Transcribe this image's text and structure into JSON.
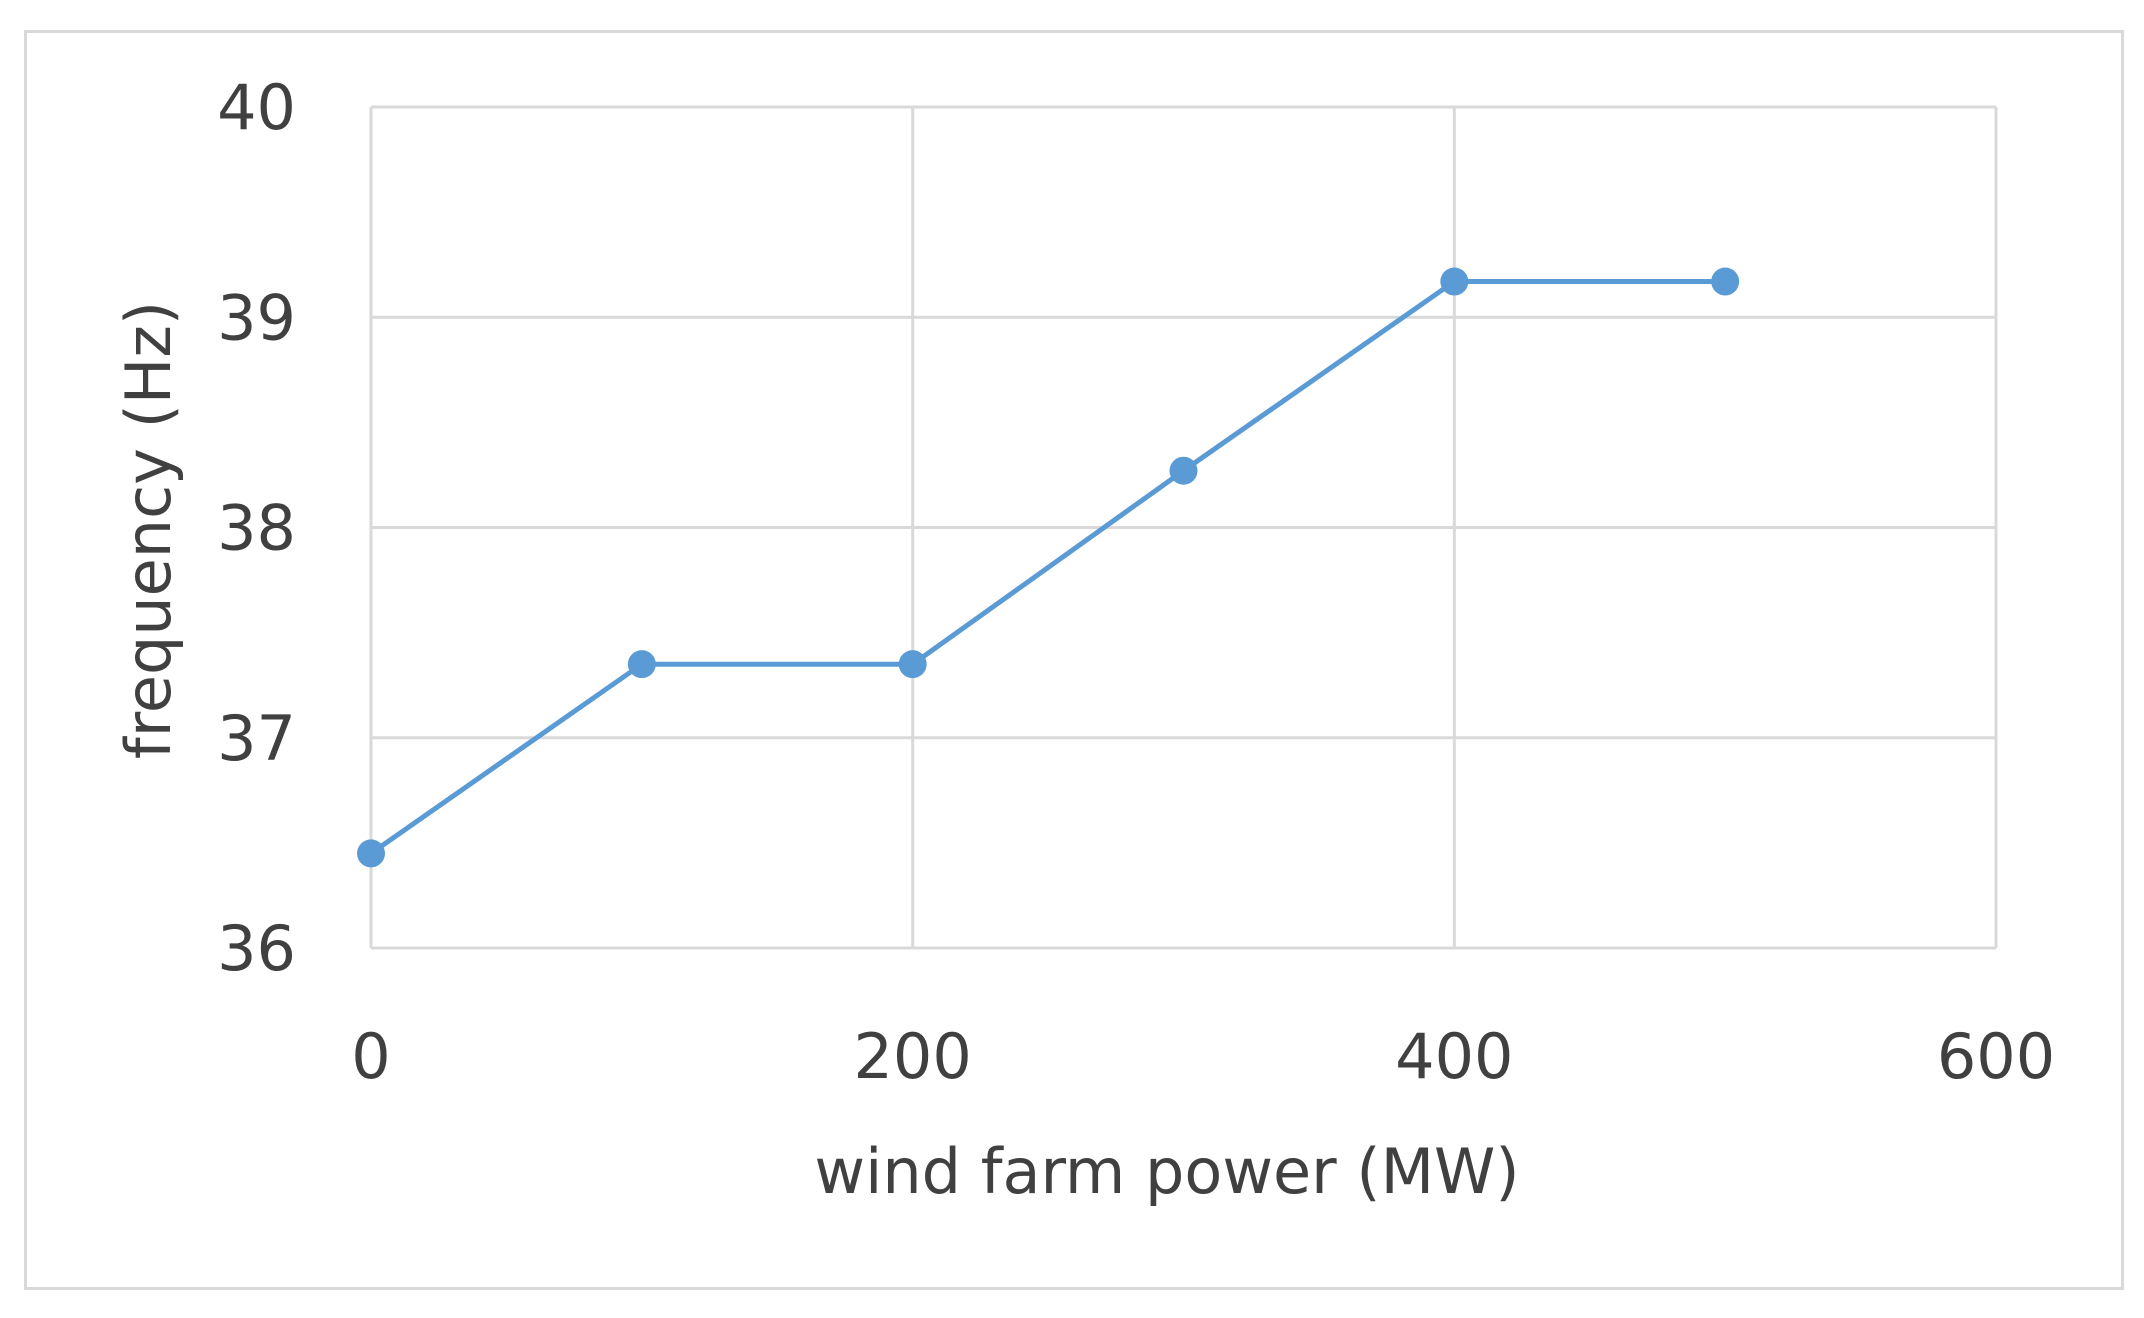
{
  "chart_data": {
    "type": "line",
    "title": "",
    "xlabel": "wind farm power (MW)",
    "ylabel": "frequency (Hz)",
    "xlim": [
      0,
      600
    ],
    "ylim": [
      36,
      40
    ],
    "xticks": [
      "0",
      "200",
      "400",
      "600"
    ],
    "yticks": [
      "36",
      "37",
      "38",
      "39",
      "40"
    ],
    "grid": true,
    "legend": "none",
    "series": [
      {
        "color": "#5b9bd5",
        "marker": "circle",
        "x": [
          0,
          100,
          200,
          300,
          400,
          500
        ],
        "y": [
          36.45,
          37.35,
          37.35,
          38.27,
          39.17,
          39.17
        ]
      }
    ]
  }
}
